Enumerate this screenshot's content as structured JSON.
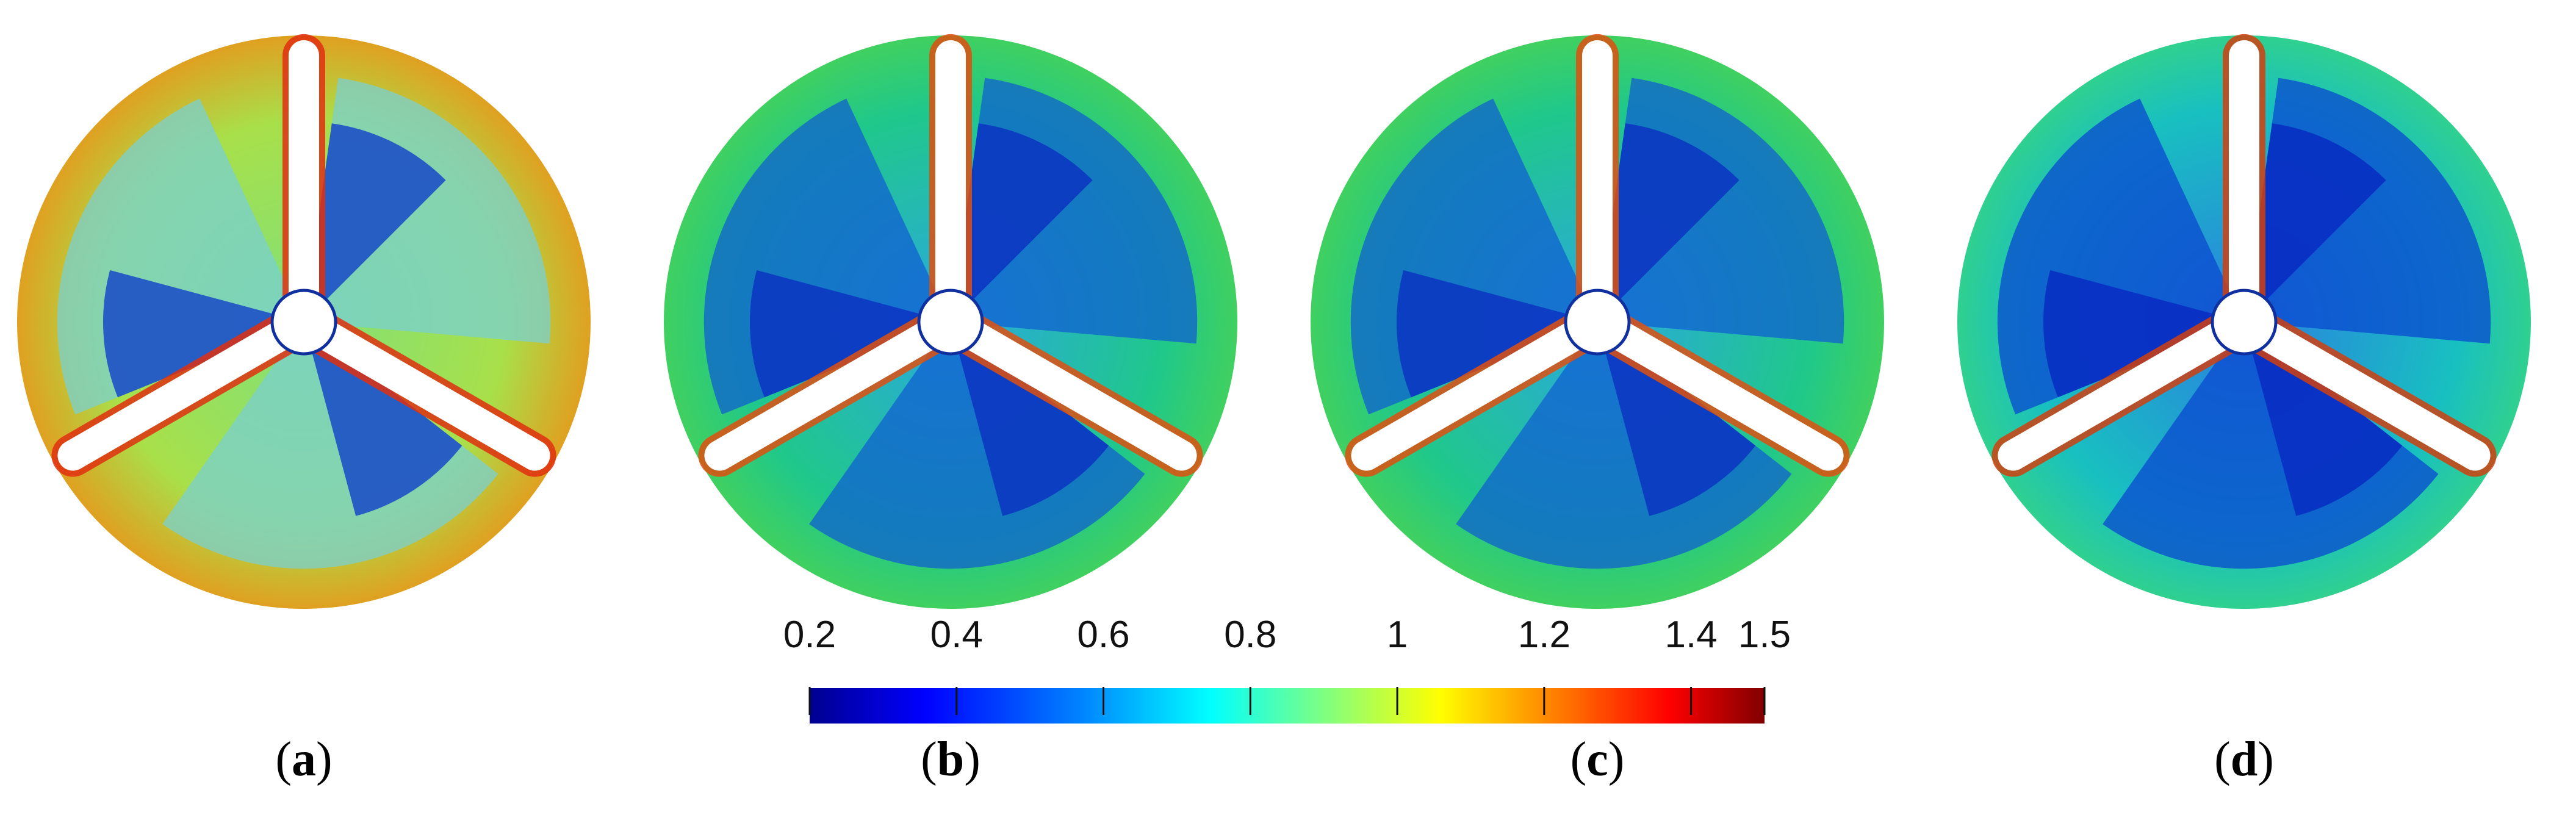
{
  "panels": [
    {
      "id": "a",
      "label": "a"
    },
    {
      "id": "b",
      "label": "b"
    },
    {
      "id": "c",
      "label": "c"
    },
    {
      "id": "d",
      "label": "d"
    }
  ],
  "colorbar": {
    "min": 0.2,
    "max": 1.5,
    "ticks": [
      {
        "value": 0.2,
        "label": "0.2"
      },
      {
        "value": 0.4,
        "label": "0.4"
      },
      {
        "value": 0.6,
        "label": "0.6"
      },
      {
        "value": 0.8,
        "label": "0.8"
      },
      {
        "value": 1.0,
        "label": "1"
      },
      {
        "value": 1.2,
        "label": "1.2"
      },
      {
        "value": 1.4,
        "label": "1.4"
      },
      {
        "value": 1.5,
        "label": "1.5"
      }
    ],
    "colormap": [
      "#00008f",
      "#0000ff",
      "#0080ff",
      "#00ffff",
      "#80ff80",
      "#ffff00",
      "#ff8000",
      "#ff0000",
      "#800000"
    ]
  }
}
